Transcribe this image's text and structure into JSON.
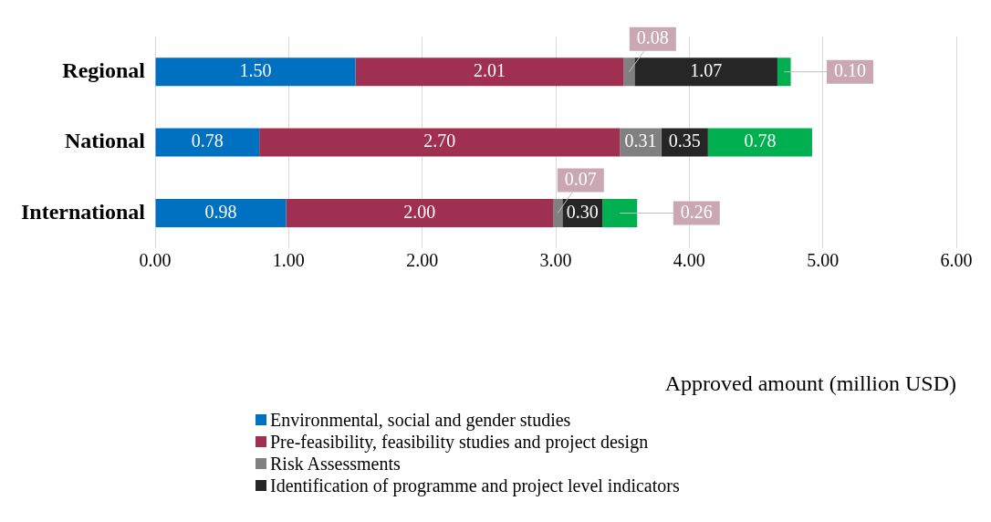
{
  "chart_data": {
    "type": "bar",
    "orientation": "horizontal",
    "stacked": true,
    "categories": [
      "Regional",
      "National",
      "International"
    ],
    "series": [
      {
        "name": "Environmental, social and gender studies",
        "color": "#0070c0",
        "values": [
          1.5,
          0.78,
          0.98
        ],
        "value_labels": [
          "1.50",
          "0.78",
          "0.98"
        ]
      },
      {
        "name": "Pre-feasibility, feasibility studies and project design",
        "color": "#a03052",
        "values": [
          2.01,
          2.7,
          2.0
        ],
        "value_labels": [
          "2.01",
          "2.70",
          "2.00"
        ]
      },
      {
        "name": "Risk Assessments",
        "color": "#808080",
        "values": [
          0.08,
          0.31,
          0.07
        ],
        "value_labels": [
          "0.08",
          "0.31",
          "0.07"
        ]
      },
      {
        "name": "Identification of programme and project level indicators",
        "color": "#262626",
        "values": [
          1.07,
          0.35,
          0.3
        ],
        "value_labels": [
          "1.07",
          "0.35",
          "0.30"
        ]
      },
      {
        "color": "#00b050",
        "values": [
          0.1,
          0.78,
          0.26
        ],
        "value_labels": [
          "0.10",
          "0.78",
          "0.26"
        ]
      }
    ],
    "xlabel": "Approved amount (million USD)",
    "xlim": [
      0,
      6
    ],
    "xticks": [
      {
        "value": 0,
        "label": "0.00"
      },
      {
        "value": 1,
        "label": "1.00"
      },
      {
        "value": 2,
        "label": "2.00"
      },
      {
        "value": 3,
        "label": "3.00"
      },
      {
        "value": 4,
        "label": "4.00"
      },
      {
        "value": 5,
        "label": "5.00"
      },
      {
        "value": 6,
        "label": "6.00"
      }
    ],
    "grid": "x",
    "legend": "bottom"
  }
}
